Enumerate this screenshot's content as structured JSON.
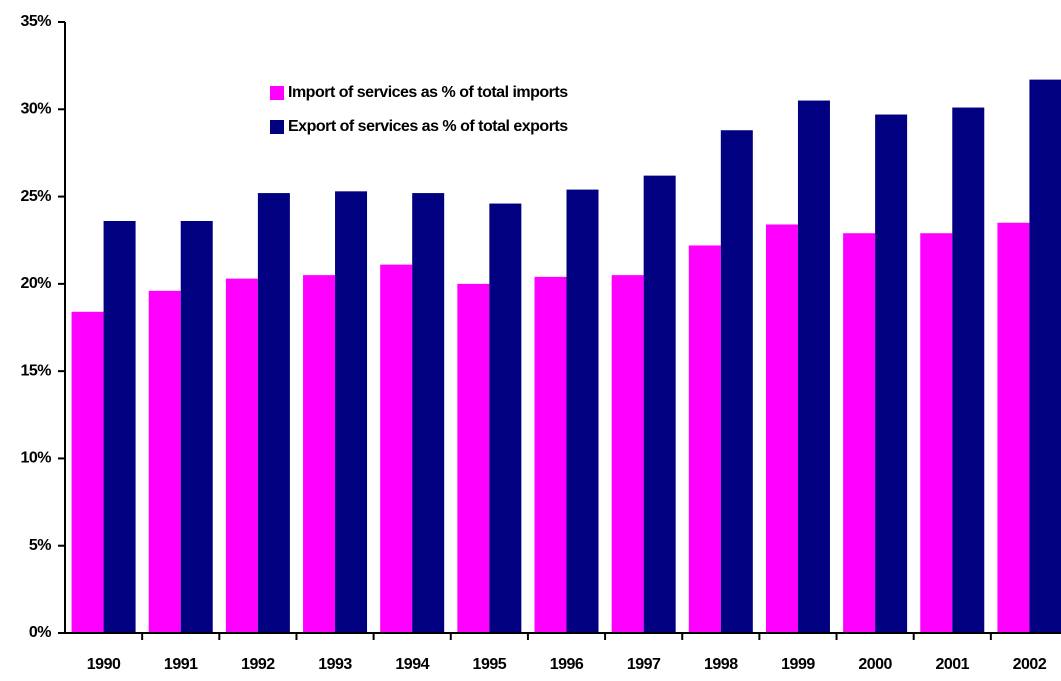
{
  "chart_data": {
    "type": "bar",
    "categories": [
      "1990",
      "1991",
      "1992",
      "1993",
      "1994",
      "1995",
      "1996",
      "1997",
      "1998",
      "1999",
      "2000",
      "2001",
      "2002"
    ],
    "series": [
      {
        "name": "Import of services as % of total imports",
        "color": "#ff00ff",
        "values": [
          18.4,
          19.6,
          20.3,
          20.5,
          21.1,
          20.0,
          20.4,
          20.5,
          22.2,
          23.4,
          22.9,
          22.9,
          23.5
        ]
      },
      {
        "name": "Export of services as % of total exports",
        "color": "#000080",
        "values": [
          23.6,
          23.6,
          25.2,
          25.3,
          25.2,
          24.6,
          25.4,
          26.2,
          28.8,
          30.5,
          29.7,
          30.1,
          31.7
        ]
      }
    ],
    "ylim": [
      0,
      35
    ],
    "yticks": [
      {
        "value": 0,
        "label": "0%"
      },
      {
        "value": 5,
        "label": "5%"
      },
      {
        "value": 10,
        "label": "10%"
      },
      {
        "value": 15,
        "label": "15%"
      },
      {
        "value": 20,
        "label": "20%"
      },
      {
        "value": 25,
        "label": "25%"
      },
      {
        "value": 30,
        "label": "30%"
      },
      {
        "value": 35,
        "label": "35%"
      }
    ],
    "grid": false,
    "legend": "top-left"
  }
}
